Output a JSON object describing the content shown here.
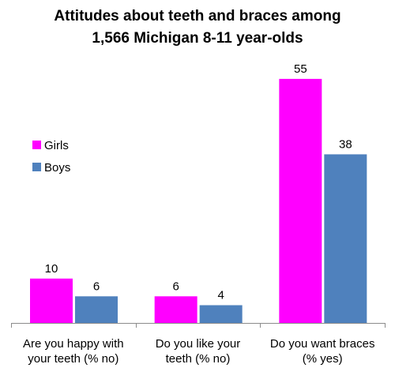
{
  "chart_data": {
    "type": "bar",
    "title_lines": [
      "Attitudes about teeth and braces among",
      "1,566 Michigan 8-11 year-olds"
    ],
    "categories": [
      [
        "Are you happy with",
        "your teeth (% no)"
      ],
      [
        "Do you like your",
        "teeth (% no)"
      ],
      [
        "Do you want braces",
        "(% yes)"
      ]
    ],
    "series": [
      {
        "name": "Girls",
        "values": [
          10,
          6,
          55
        ],
        "color": "#ff00ff"
      },
      {
        "name": "Boys",
        "values": [
          6,
          4,
          38
        ],
        "color": "#4f81bd"
      }
    ],
    "ylim": [
      0,
      60
    ],
    "grid": false,
    "legend_position": "left"
  }
}
